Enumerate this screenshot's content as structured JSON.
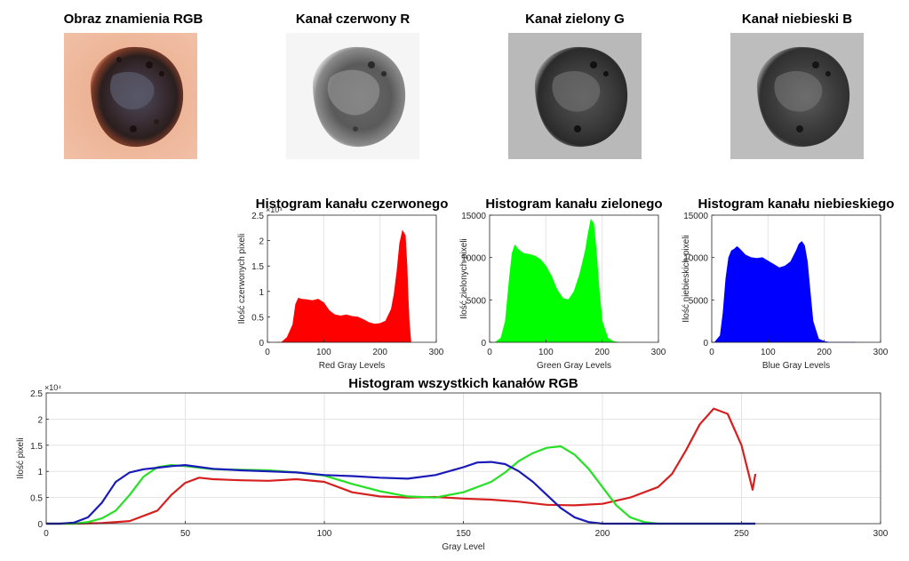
{
  "images": [
    {
      "title": "Obraz znamienia RGB",
      "kind": "rgb"
    },
    {
      "title": "Kanał czerwony R",
      "kind": "red"
    },
    {
      "title": "Kanał zielony G",
      "kind": "green"
    },
    {
      "title": "Kanał niebieski B",
      "kind": "blue"
    }
  ],
  "colors": {
    "red": "#ff0000",
    "green": "#00ff00",
    "blue": "#0000ff",
    "line_red": "#d62020",
    "line_green": "#26e026",
    "line_blue": "#1a1ab8"
  },
  "chart_data": [
    {
      "type": "area",
      "title": "Histogram kanału czerwonego",
      "xlabel": "Red Gray Levels",
      "ylabel": "Ilość czerwonych pixeli",
      "xlim": [
        0,
        300
      ],
      "ylim": [
        0,
        25000
      ],
      "xticks": [
        "0",
        "100",
        "200",
        "300"
      ],
      "yticks": [
        "0",
        "0.5",
        "1",
        "1.5",
        "2",
        "2.5"
      ],
      "y_exponent": "×10⁴",
      "color": "#ff0000",
      "x": [
        15,
        25,
        35,
        45,
        50,
        55,
        60,
        70,
        80,
        90,
        100,
        110,
        120,
        130,
        140,
        150,
        160,
        170,
        180,
        190,
        200,
        210,
        220,
        225,
        230,
        235,
        240,
        245,
        248,
        250,
        252,
        255
      ],
      "values": [
        0,
        0,
        1000,
        3500,
        7500,
        8700,
        8500,
        8400,
        8200,
        8500,
        7800,
        6200,
        5400,
        5200,
        5400,
        5100,
        5000,
        4500,
        3900,
        3600,
        3700,
        4200,
        6500,
        9500,
        14000,
        19500,
        22000,
        21000,
        15000,
        9000,
        4000,
        0
      ]
    },
    {
      "type": "area",
      "title": "Histogram kanału zielonego",
      "xlabel": "Green Gray Levels",
      "ylabel": "Ilość zielonych pixeli",
      "xlim": [
        0,
        300
      ],
      "ylim": [
        0,
        15000
      ],
      "xticks": [
        "0",
        "100",
        "200",
        "300"
      ],
      "yticks": [
        "0",
        "5000",
        "10000",
        "15000"
      ],
      "color": "#00ff00",
      "x": [
        10,
        20,
        28,
        35,
        40,
        45,
        50,
        60,
        70,
        80,
        90,
        100,
        110,
        120,
        130,
        140,
        150,
        160,
        170,
        175,
        180,
        185,
        190,
        195,
        200,
        210,
        220,
        230
      ],
      "values": [
        0,
        500,
        2500,
        7500,
        10500,
        11500,
        11000,
        10500,
        10400,
        10200,
        9800,
        9000,
        7800,
        6200,
        5200,
        5000,
        6000,
        8000,
        10800,
        12800,
        14500,
        14000,
        10500,
        6000,
        2500,
        500,
        100,
        0
      ]
    },
    {
      "type": "area",
      "title": "Histogram kanału niebieskiego",
      "xlabel": "Blue Gray Levels",
      "ylabel": "Ilość niebieskich pixeli",
      "xlim": [
        0,
        300
      ],
      "ylim": [
        0,
        15000
      ],
      "xticks": [
        "0",
        "100",
        "200",
        "300"
      ],
      "yticks": [
        "0",
        "5000",
        "10000",
        "15000"
      ],
      "color": "#0000ff",
      "x": [
        5,
        15,
        20,
        25,
        30,
        35,
        40,
        45,
        50,
        60,
        70,
        80,
        90,
        100,
        110,
        120,
        130,
        140,
        150,
        155,
        160,
        165,
        170,
        175,
        180,
        190,
        200,
        210,
        220,
        256
      ],
      "values": [
        0,
        800,
        3500,
        7500,
        10000,
        10800,
        11000,
        11300,
        11000,
        10300,
        10000,
        9900,
        10000,
        9600,
        9200,
        8800,
        9000,
        9500,
        10800,
        11600,
        11900,
        11400,
        9500,
        6000,
        2500,
        400,
        100,
        0,
        0,
        0
      ]
    },
    {
      "type": "line",
      "title": "Histogram wszystkich kanałów RGB",
      "xlabel": "Gray Level",
      "ylabel": "Ilość pixeli",
      "xlim": [
        0,
        300
      ],
      "ylim": [
        0,
        25000
      ],
      "xticks": [
        "0",
        "50",
        "100",
        "150",
        "200",
        "250",
        "300"
      ],
      "yticks": [
        "0",
        "0.5",
        "1",
        "1.5",
        "2",
        "2.5"
      ],
      "y_exponent": "×10⁴",
      "series": [
        {
          "color": "#d62020",
          "x": [
            0,
            10,
            20,
            30,
            40,
            45,
            50,
            55,
            60,
            70,
            80,
            90,
            100,
            110,
            120,
            130,
            140,
            150,
            160,
            170,
            180,
            190,
            200,
            210,
            220,
            225,
            230,
            235,
            240,
            245,
            250,
            254,
            255
          ],
          "values": [
            0,
            0,
            100,
            500,
            2500,
            5500,
            7800,
            8800,
            8500,
            8300,
            8200,
            8500,
            8000,
            6000,
            5200,
            5000,
            5100,
            4800,
            4600,
            4200,
            3600,
            3500,
            3800,
            5000,
            7000,
            9500,
            14000,
            19000,
            22000,
            21000,
            15000,
            6500,
            9500
          ]
        },
        {
          "color": "#26e026",
          "x": [
            0,
            10,
            15,
            20,
            25,
            30,
            35,
            40,
            45,
            50,
            60,
            70,
            80,
            90,
            100,
            110,
            120,
            130,
            140,
            150,
            160,
            165,
            170,
            175,
            180,
            185,
            190,
            195,
            200,
            205,
            210,
            215,
            220,
            225,
            230,
            255
          ],
          "values": [
            0,
            0,
            300,
            1000,
            2500,
            5500,
            9000,
            10800,
            11200,
            11000,
            10400,
            10300,
            10200,
            9800,
            9200,
            7600,
            6200,
            5200,
            5000,
            6000,
            8000,
            9800,
            12000,
            13500,
            14500,
            14800,
            13200,
            10500,
            7000,
            3500,
            1200,
            300,
            0,
            0,
            0,
            0
          ]
        },
        {
          "color": "#1a1ab8",
          "x": [
            0,
            5,
            10,
            15,
            20,
            25,
            30,
            35,
            40,
            45,
            50,
            60,
            70,
            80,
            90,
            100,
            110,
            120,
            130,
            140,
            150,
            155,
            160,
            165,
            170,
            175,
            180,
            185,
            190,
            195,
            200,
            205,
            210,
            220,
            255
          ],
          "values": [
            0,
            0,
            200,
            1200,
            4000,
            8000,
            9800,
            10400,
            10700,
            11000,
            11200,
            10500,
            10200,
            10000,
            9800,
            9300,
            9100,
            8800,
            8600,
            9300,
            10800,
            11700,
            11800,
            11400,
            10000,
            8000,
            5500,
            3000,
            1200,
            300,
            0,
            0,
            0,
            0,
            0
          ]
        }
      ]
    }
  ]
}
